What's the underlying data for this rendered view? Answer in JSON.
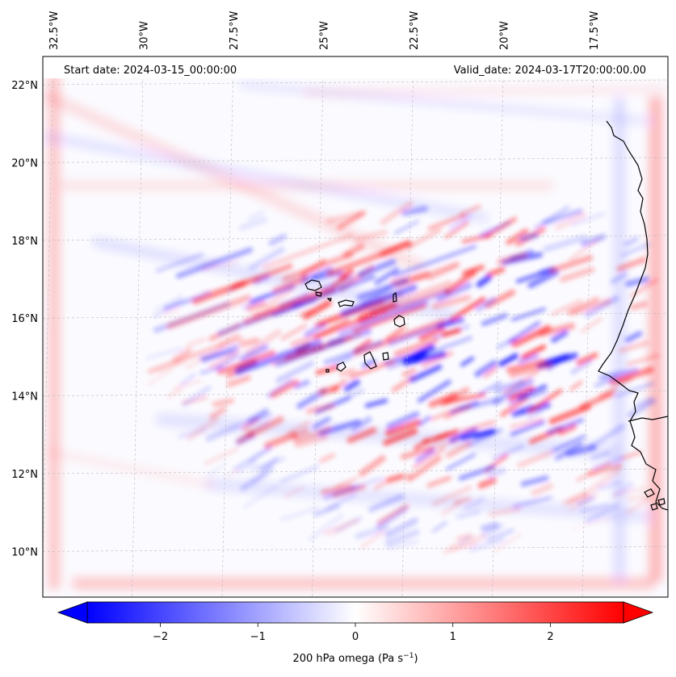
{
  "map": {
    "start_date_label": "Start date: 2024-03-15_00:00:00",
    "valid_date_label": "Valid_date: 2024-03-17T20:00:00.00",
    "lon_ticks": [
      {
        "value": -32.5,
        "label": "32.5°W"
      },
      {
        "value": -30.0,
        "label": "30°W"
      },
      {
        "value": -27.5,
        "label": "27.5°W"
      },
      {
        "value": -25.0,
        "label": "25°W"
      },
      {
        "value": -22.5,
        "label": "22.5°W"
      },
      {
        "value": -20.0,
        "label": "20°W"
      },
      {
        "value": -17.5,
        "label": "17.5°W"
      }
    ],
    "lat_ticks": [
      {
        "value": 22,
        "label": "22°N"
      },
      {
        "value": 20,
        "label": "20°N"
      },
      {
        "value": 18,
        "label": "18°N"
      },
      {
        "value": 16,
        "label": "16°N"
      },
      {
        "value": 14,
        "label": "14°N"
      },
      {
        "value": 12,
        "label": "12°N"
      },
      {
        "value": 10,
        "label": "10°N"
      }
    ],
    "field_colors": {
      "negative": "#0000ff",
      "zero": "#ffffff",
      "positive": "#ff0000"
    }
  },
  "colorbar": {
    "min": -2.75,
    "max": 2.75,
    "ticks": [
      {
        "value": -2,
        "label": "−2"
      },
      {
        "value": -1,
        "label": "−1"
      },
      {
        "value": 0,
        "label": "0"
      },
      {
        "value": 1,
        "label": "1"
      },
      {
        "value": 2,
        "label": "2"
      }
    ],
    "label_main": "200 hPa omega (Pa s",
    "label_sup": "−1",
    "label_end": ")"
  }
}
